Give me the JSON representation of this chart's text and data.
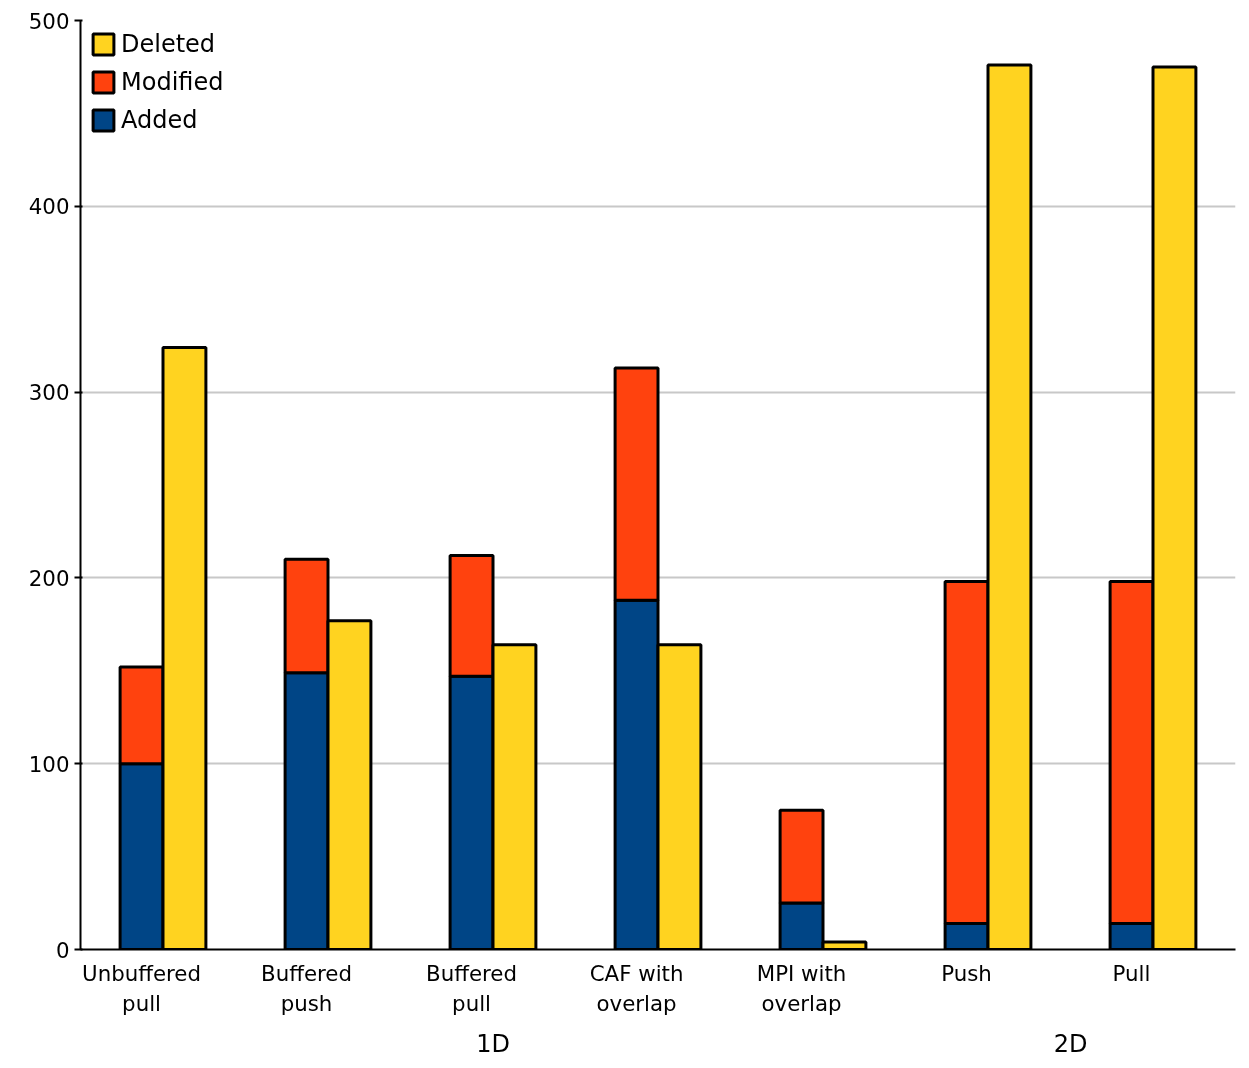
{
  "chart_data": {
    "type": "bar",
    "stacked": true,
    "categories": [
      "Unbuffered\npull",
      null,
      "Buffered\npush",
      null,
      "Buffered\npull",
      null,
      "CAF with\noverlap",
      null,
      "MPI with\noverlap",
      null,
      "Push",
      null,
      "Pull",
      null
    ],
    "series": [
      {
        "name": "Added",
        "color": "#004586",
        "values": [
          100,
          null,
          149,
          null,
          147,
          null,
          188,
          null,
          25,
          null,
          14,
          null,
          14,
          null
        ]
      },
      {
        "name": "Modified",
        "color": "#ff420e",
        "values": [
          52,
          null,
          61,
          null,
          65,
          null,
          125,
          null,
          50,
          null,
          184,
          null,
          184,
          null
        ]
      },
      {
        "name": "Deleted",
        "color": "#ffd320",
        "values": [
          null,
          324,
          null,
          177,
          null,
          164,
          null,
          164,
          null,
          4,
          null,
          476,
          null,
          475
        ]
      }
    ],
    "ylim": [
      0,
      500
    ],
    "yticks": [
      0,
      100,
      200,
      300,
      400,
      500
    ],
    "grid": "y",
    "legend": "top left",
    "annotations": [
      "1D",
      "2D"
    ]
  }
}
